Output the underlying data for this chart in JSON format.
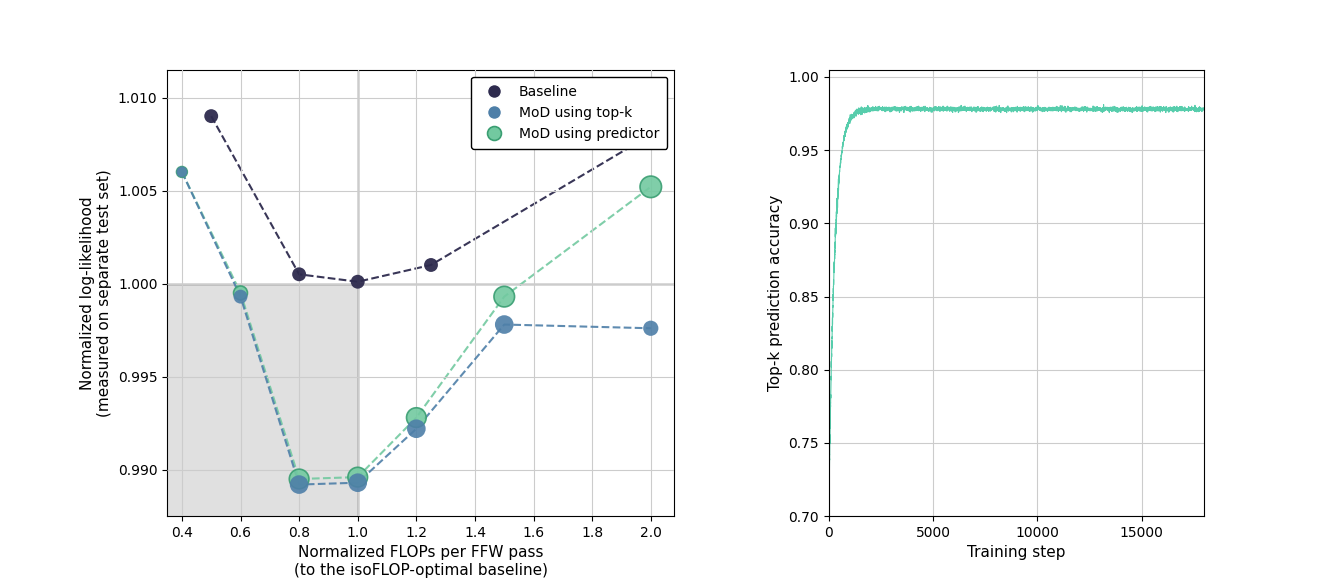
{
  "left_plot": {
    "baseline_x": [
      0.5,
      0.8,
      1.0,
      1.25,
      2.0
    ],
    "baseline_y": [
      1.009,
      1.0005,
      1.0001,
      1.001,
      1.008
    ],
    "topk_x": [
      0.4,
      0.6,
      0.8,
      1.0,
      1.2,
      1.5,
      2.0
    ],
    "topk_y": [
      1.006,
      0.9993,
      0.9892,
      0.9893,
      0.9922,
      0.9978,
      0.9976
    ],
    "predictor_x": [
      0.4,
      0.6,
      0.8,
      1.0,
      1.2,
      1.5,
      2.0
    ],
    "predictor_y": [
      1.006,
      0.9995,
      0.9895,
      0.9896,
      0.9928,
      0.9993,
      1.0052
    ],
    "baseline_color": "#2e2b4e",
    "topk_color": "#4e7fa8",
    "predictor_color": "#72c9a0",
    "predictor_edge_color": "#3a9e72",
    "baseline_sizes": [
      100,
      100,
      100,
      100,
      120
    ],
    "topk_sizes": [
      60,
      100,
      180,
      180,
      180,
      180,
      120
    ],
    "predictor_sizes": [
      60,
      100,
      200,
      200,
      200,
      220,
      240
    ],
    "xlabel": "Normalized FLOPs per FFW pass\n(to the isoFLOP-optimal baseline)",
    "ylabel": "Normalized log-likelihood\n(measured on separate test set)",
    "xlim": [
      0.35,
      2.08
    ],
    "ylim": [
      0.9875,
      1.0115
    ],
    "yticks": [
      0.99,
      0.995,
      1.0,
      1.005,
      1.01
    ],
    "xticks": [
      0.4,
      0.6,
      0.8,
      1.0,
      1.2,
      1.4,
      1.6,
      1.8,
      2.0
    ],
    "vline_x": 1.0,
    "hline_y": 1.0,
    "shade_color": "#e0e0e0"
  },
  "right_plot": {
    "ylabel": "Top-k prediction accuracy",
    "xlabel": "Training step",
    "xlim": [
      0,
      18000
    ],
    "ylim": [
      0.7,
      1.005
    ],
    "yticks": [
      0.7,
      0.75,
      0.8,
      0.85,
      0.9,
      0.95,
      1.0
    ],
    "xticks": [
      0,
      5000,
      10000,
      15000
    ],
    "line_color": "#4ecba8"
  }
}
